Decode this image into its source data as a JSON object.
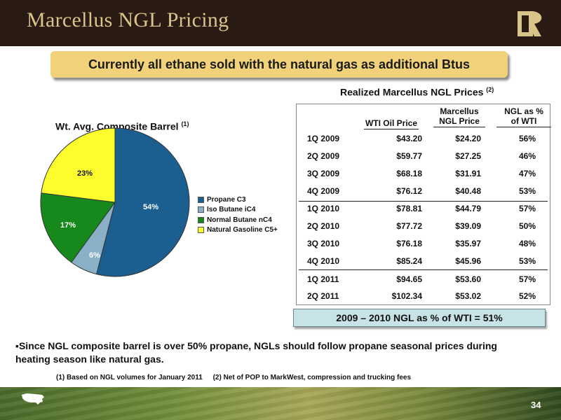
{
  "header": {
    "title": "Marcellus NGL Pricing",
    "logo_icon": "markwest-r-logo",
    "bg_color": "#2a1a14",
    "title_color": "#d9c48a"
  },
  "banner": {
    "text": "Currently all ethane sold with the natural gas as additional Btus",
    "bg_color": "#f1d27a"
  },
  "pie": {
    "title": "Wt. Avg. Composite Barrel",
    "title_note": "(1)",
    "labels": [
      "54%",
      "6%",
      "17%",
      "23%"
    ]
  },
  "chart_data": {
    "type": "pie",
    "title": "Wt. Avg. Composite Barrel",
    "categories": [
      "Propane C3",
      "Iso Butane iC4",
      "Normal Butane nC4",
      "Natural Gasoline C5+"
    ],
    "values": [
      54,
      6,
      17,
      23
    ],
    "colors": [
      "#1a5f8f",
      "#8ab0c8",
      "#16881c",
      "#fdfd2e"
    ],
    "legend_position": "right"
  },
  "table": {
    "title": "Realized Marcellus NGL Prices",
    "title_note": "(2)",
    "headers": {
      "wti": "WTI Oil Price",
      "ngl_line1": "Marcellus",
      "ngl_line2": "NGL Price",
      "pct_line1": "NGL as %",
      "pct_line2": "of WTI"
    },
    "rows": [
      {
        "q": "1Q 2009",
        "wti": "$43.20",
        "ngl": "$24.20",
        "pct": "56%"
      },
      {
        "q": "2Q 2009",
        "wti": "$59.77",
        "ngl": "$27.25",
        "pct": "46%"
      },
      {
        "q": "3Q 2009",
        "wti": "$68.18",
        "ngl": "$31.91",
        "pct": "47%"
      },
      {
        "q": "4Q 2009",
        "wti": "$76.12",
        "ngl": "$40.48",
        "pct": "53%"
      },
      {
        "q": "1Q 2010",
        "wti": "$78.81",
        "ngl": "$44.79",
        "pct": "57%"
      },
      {
        "q": "2Q 2010",
        "wti": "$77.72",
        "ngl": "$39.09",
        "pct": "50%"
      },
      {
        "q": "3Q 2010",
        "wti": "$76.18",
        "ngl": "$35.97",
        "pct": "48%"
      },
      {
        "q": "4Q 2010",
        "wti": "$85.24",
        "ngl": "$45.96",
        "pct": "53%"
      },
      {
        "q": "1Q 2011",
        "wti": "$94.65",
        "ngl": "$53.60",
        "pct": "57%"
      },
      {
        "q": "2Q 2011",
        "wti": "$102.34",
        "ngl": "$53.02",
        "pct": "52%"
      }
    ]
  },
  "summary": {
    "text": "2009 – 2010 NGL as % of WTI = 51%",
    "bg_color": "#c8e3e7"
  },
  "bullet": {
    "marker": "▪",
    "text": "Since NGL composite barrel is over 50% propane, NGLs should follow propane seasonal prices during heating season like natural gas."
  },
  "footnotes": {
    "note1": "(1) Based on NGL volumes for January 2011",
    "note2": "(2) Net of POP to MarkWest, compression and trucking fees"
  },
  "footer": {
    "page_number": "34",
    "map_icon": "usa-map-icon"
  }
}
